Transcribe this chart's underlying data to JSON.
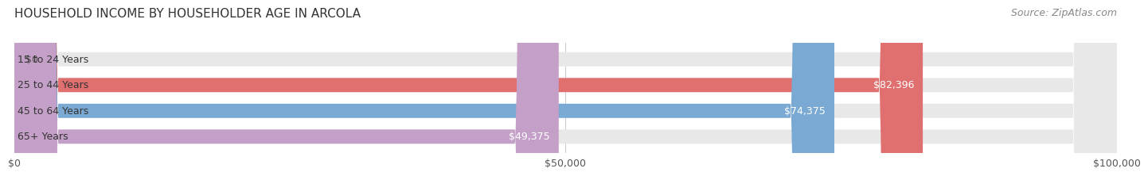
{
  "title": "HOUSEHOLD INCOME BY HOUSEHOLDER AGE IN ARCOLA",
  "source": "Source: ZipAtlas.com",
  "categories": [
    "15 to 24 Years",
    "25 to 44 Years",
    "45 to 64 Years",
    "65+ Years"
  ],
  "values": [
    0,
    82396,
    74375,
    49375
  ],
  "bar_colors": [
    "#e8c99a",
    "#e07070",
    "#7aaad4",
    "#c4a0c8"
  ],
  "bar_bg_color": "#e8e8e8",
  "value_labels": [
    "$0",
    "$82,396",
    "$74,375",
    "$49,375"
  ],
  "x_ticks": [
    0,
    50000,
    100000
  ],
  "x_tick_labels": [
    "$0",
    "$50,000",
    "$100,000"
  ],
  "xlim": [
    0,
    100000
  ],
  "title_fontsize": 11,
  "source_fontsize": 9,
  "label_fontsize": 9,
  "value_fontsize": 9,
  "tick_fontsize": 9,
  "background_color": "#ffffff",
  "bar_height": 0.55
}
